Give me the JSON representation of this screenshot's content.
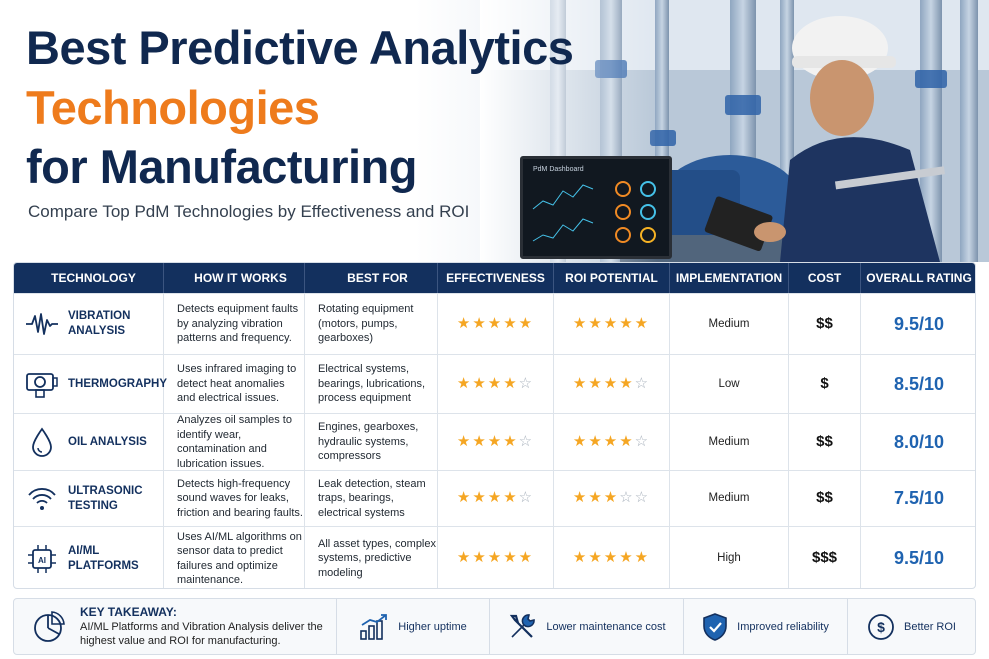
{
  "header": {
    "title_line1": "Best Predictive Analytics",
    "title_line2": "Technologies",
    "title_line3": "for Manufacturing",
    "subtitle": "Compare Top PdM Technologies by Effectiveness and ROI",
    "monitor_title": "PdM Dashboard"
  },
  "colors": {
    "navy": "#13305e",
    "orange": "#ee7b1c",
    "star": "#f5a623",
    "rating_blue": "#1f63b0"
  },
  "table": {
    "columns": [
      "TECHNOLOGY",
      "HOW IT WORKS",
      "BEST FOR",
      "EFFECTIVENESS",
      "ROI POTENTIAL",
      "IMPLEMENTATION",
      "COST",
      "OVERALL RATING"
    ],
    "rows": [
      {
        "icon": "waveform-icon",
        "technology": "VIBRATION ANALYSIS",
        "how_it_works": "Detects equipment faults by analyzing vibration patterns and frequency.",
        "best_for": "Rotating equipment (motors, pumps, gearboxes)",
        "effectiveness_stars": 5,
        "roi_stars": 5,
        "implementation": "Medium",
        "cost": "$$",
        "rating": "9.5/10"
      },
      {
        "icon": "thermal-camera-icon",
        "technology": "THERMOGRAPHY",
        "how_it_works": "Uses infrared imaging to detect heat anomalies and electrical issues.",
        "best_for": "Electrical systems, bearings, lubrications, process equipment",
        "effectiveness_stars": 4,
        "roi_stars": 4,
        "implementation": "Low",
        "cost": "$",
        "rating": "8.5/10"
      },
      {
        "icon": "oil-drop-icon",
        "technology": "OIL ANALYSIS",
        "how_it_works": "Analyzes oil samples to identify wear, contamination and lubrication issues.",
        "best_for": "Engines, gearboxes, hydraulic systems, compressors",
        "effectiveness_stars": 4,
        "roi_stars": 4,
        "implementation": "Medium",
        "cost": "$$",
        "rating": "8.0/10"
      },
      {
        "icon": "sound-waves-icon",
        "technology": "ULTRASONIC TESTING",
        "how_it_works": "Detects high-frequency sound waves for leaks, friction and bearing faults.",
        "best_for": "Leak detection, steam traps, bearings, electrical systems",
        "effectiveness_stars": 4,
        "roi_stars": 3,
        "implementation": "Medium",
        "cost": "$$",
        "rating": "7.5/10"
      },
      {
        "icon": "ai-chip-icon",
        "technology": "AI/ML PLATFORMS",
        "how_it_works": "Uses AI/ML algorithms on sensor data to predict failures and optimize maintenance.",
        "best_for": "All asset types, complex systems, predictive modeling",
        "effectiveness_stars": 5,
        "roi_stars": 5,
        "implementation": "High",
        "cost": "$$$",
        "rating": "9.5/10"
      }
    ]
  },
  "footer": {
    "takeaway_title": "KEY TAKEAWAY:",
    "takeaway_text": "AI/ML Platforms and Vibration Analysis deliver the highest value and ROI for manufacturing.",
    "items": [
      {
        "label": "Higher uptime",
        "icon": "bar-chart-up-icon"
      },
      {
        "label": "Lower maintenance cost",
        "icon": "wrench-icon"
      },
      {
        "label": "Improved reliability",
        "icon": "shield-check-icon"
      },
      {
        "label": "Better ROI",
        "icon": "dollar-circle-icon"
      }
    ]
  }
}
